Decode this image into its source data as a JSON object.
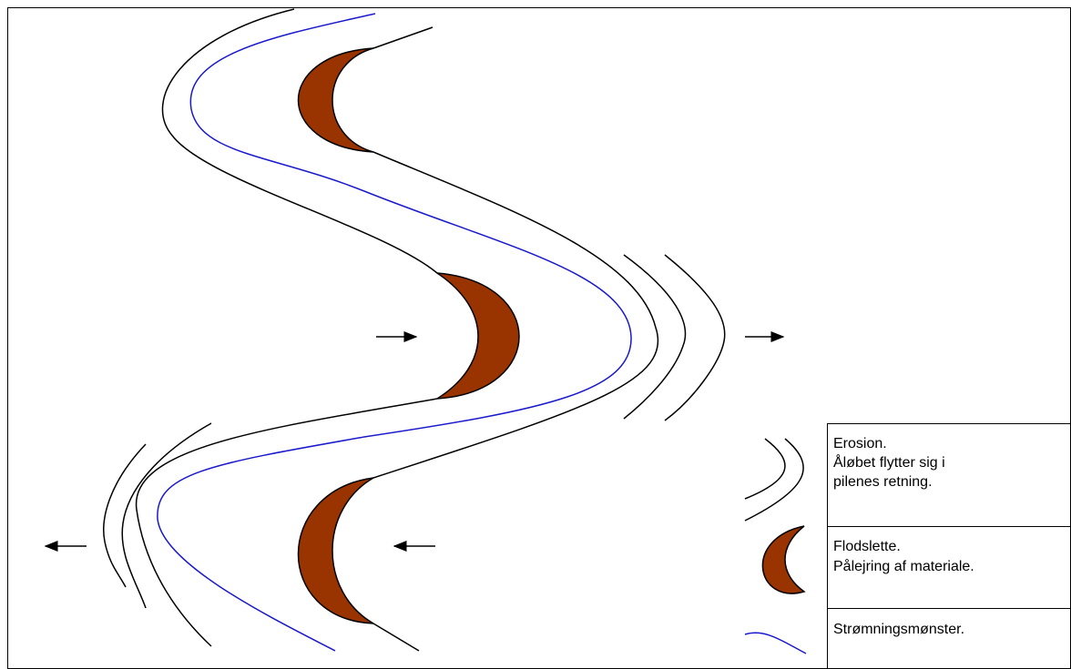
{
  "legend": {
    "items": [
      {
        "lines": [
          "Erosion.",
          "Åløbet flytter sig i",
          "pilenes retning."
        ]
      },
      {
        "lines": [
          "Flodslette.",
          "Pålejring af materiale."
        ]
      },
      {
        "lines": [
          "Strømningsmønster."
        ]
      }
    ]
  }
}
